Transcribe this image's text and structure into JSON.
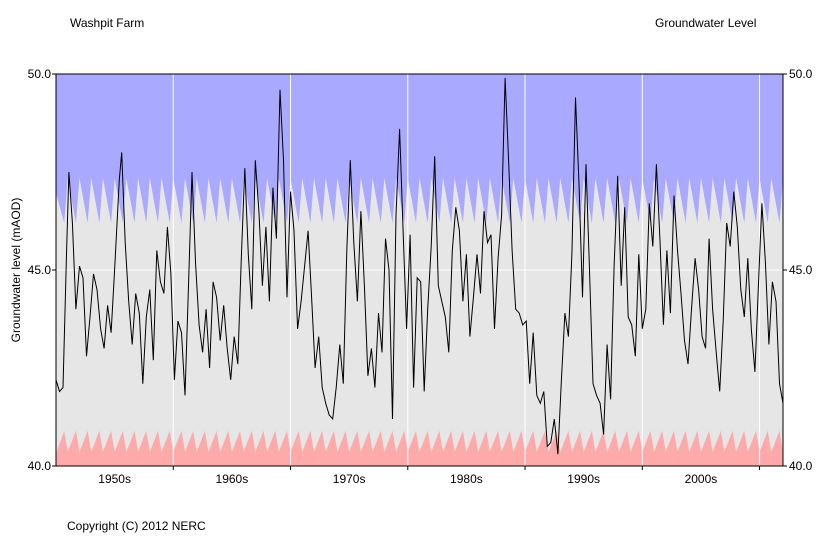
{
  "header": {
    "site": "Washpit Farm",
    "title": "Groundwater Level"
  },
  "footer": {
    "copyright": "Copyright (C) 2012 NERC"
  },
  "chart_data": {
    "type": "line",
    "title": "Groundwater Level",
    "subtitle": "Washpit Farm",
    "xlabel": "",
    "ylabel": "Groundwater level (mAOD)",
    "xlim": [
      1945.0,
      2007.0
    ],
    "ylim": [
      40.0,
      50.0
    ],
    "y_ticks": [
      "40.0",
      "45.0",
      "50.0"
    ],
    "x_tick_labels": [
      {
        "label": "1950s",
        "center": 1950.0
      },
      {
        "label": "1960s",
        "center": 1960.0
      },
      {
        "label": "1970s",
        "center": 1970.0
      },
      {
        "label": "1980s",
        "center": 1980.0
      },
      {
        "label": "1990s",
        "center": 1990.0
      },
      {
        "label": "2000s",
        "center": 2000.0
      }
    ],
    "gridlines_x": [
      1955,
      1965,
      1975,
      1985,
      1995,
      2005
    ],
    "gridlines_y": [
      45.0
    ],
    "grid": true,
    "colors": {
      "line": "#000000",
      "plot_background": "#e6e6e6",
      "high_band": "#a9a9ff",
      "low_band": "#ffaaaa",
      "grid": "#ffffff"
    },
    "bands": {
      "high_max_level": 50.0,
      "high_min_level": 46.2,
      "low_max_level": 40.9,
      "low_min_level": 40.0
    },
    "series": [
      {
        "values": [
          [
            1945.0,
            42.2
          ],
          [
            1945.3,
            41.9
          ],
          [
            1945.6,
            42.0
          ],
          [
            1945.9,
            45.5
          ],
          [
            1946.1,
            47.5
          ],
          [
            1946.4,
            46.2
          ],
          [
            1946.7,
            44.0
          ],
          [
            1947.0,
            45.1
          ],
          [
            1947.3,
            44.8
          ],
          [
            1947.6,
            42.8
          ],
          [
            1947.9,
            43.8
          ],
          [
            1948.2,
            44.9
          ],
          [
            1948.5,
            44.5
          ],
          [
            1948.8,
            43.5
          ],
          [
            1949.1,
            43.0
          ],
          [
            1949.4,
            44.1
          ],
          [
            1949.7,
            43.4
          ],
          [
            1950.0,
            45.0
          ],
          [
            1950.4,
            47.3
          ],
          [
            1950.6,
            48.0
          ],
          [
            1950.9,
            45.7
          ],
          [
            1951.2,
            44.2
          ],
          [
            1951.5,
            43.1
          ],
          [
            1951.8,
            44.4
          ],
          [
            1952.1,
            43.9
          ],
          [
            1952.4,
            42.1
          ],
          [
            1952.7,
            43.8
          ],
          [
            1953.0,
            44.5
          ],
          [
            1953.3,
            42.7
          ],
          [
            1953.6,
            45.5
          ],
          [
            1953.9,
            44.7
          ],
          [
            1954.2,
            44.4
          ],
          [
            1954.5,
            46.1
          ],
          [
            1954.8,
            44.9
          ],
          [
            1955.1,
            42.2
          ],
          [
            1955.4,
            43.7
          ],
          [
            1955.7,
            43.4
          ],
          [
            1956.0,
            41.8
          ],
          [
            1956.3,
            44.6
          ],
          [
            1956.6,
            47.5
          ],
          [
            1956.9,
            45.2
          ],
          [
            1957.2,
            43.6
          ],
          [
            1957.5,
            42.9
          ],
          [
            1957.8,
            44.0
          ],
          [
            1958.1,
            42.5
          ],
          [
            1958.4,
            44.7
          ],
          [
            1958.7,
            44.3
          ],
          [
            1959.0,
            43.2
          ],
          [
            1959.3,
            44.1
          ],
          [
            1959.6,
            43.0
          ],
          [
            1959.9,
            42.2
          ],
          [
            1960.2,
            43.3
          ],
          [
            1960.5,
            42.6
          ],
          [
            1960.8,
            45.3
          ],
          [
            1961.1,
            47.6
          ],
          [
            1961.4,
            45.4
          ],
          [
            1961.7,
            44.0
          ],
          [
            1962.0,
            47.8
          ],
          [
            1962.3,
            46.5
          ],
          [
            1962.6,
            44.6
          ],
          [
            1962.9,
            46.1
          ],
          [
            1963.2,
            44.2
          ],
          [
            1963.5,
            47.1
          ],
          [
            1963.8,
            45.8
          ],
          [
            1964.1,
            49.6
          ],
          [
            1964.4,
            47.8
          ],
          [
            1964.7,
            44.3
          ],
          [
            1965.0,
            47.0
          ],
          [
            1965.3,
            46.0
          ],
          [
            1965.6,
            43.5
          ],
          [
            1965.9,
            44.2
          ],
          [
            1966.2,
            45.1
          ],
          [
            1966.5,
            46.0
          ],
          [
            1966.8,
            44.3
          ],
          [
            1967.1,
            42.5
          ],
          [
            1967.4,
            43.3
          ],
          [
            1967.7,
            42.0
          ],
          [
            1968.0,
            41.6
          ],
          [
            1968.3,
            41.3
          ],
          [
            1968.6,
            41.2
          ],
          [
            1968.9,
            42.0
          ],
          [
            1969.2,
            43.1
          ],
          [
            1969.5,
            42.1
          ],
          [
            1969.8,
            45.5
          ],
          [
            1970.1,
            47.8
          ],
          [
            1970.4,
            45.7
          ],
          [
            1970.7,
            44.2
          ],
          [
            1971.0,
            46.5
          ],
          [
            1971.3,
            44.6
          ],
          [
            1971.6,
            42.3
          ],
          [
            1971.9,
            43.0
          ],
          [
            1972.2,
            42.0
          ],
          [
            1972.5,
            43.9
          ],
          [
            1972.8,
            42.9
          ],
          [
            1973.1,
            45.8
          ],
          [
            1973.4,
            45.0
          ],
          [
            1973.7,
            41.2
          ],
          [
            1974.0,
            46.4
          ],
          [
            1974.3,
            48.6
          ],
          [
            1974.6,
            46.0
          ],
          [
            1974.9,
            43.5
          ],
          [
            1975.2,
            45.9
          ],
          [
            1975.5,
            42.0
          ],
          [
            1975.8,
            44.8
          ],
          [
            1976.1,
            44.7
          ],
          [
            1976.4,
            41.9
          ],
          [
            1976.7,
            44.0
          ],
          [
            1977.0,
            45.6
          ],
          [
            1977.3,
            47.9
          ],
          [
            1977.6,
            44.6
          ],
          [
            1977.9,
            44.2
          ],
          [
            1978.2,
            43.8
          ],
          [
            1978.5,
            42.9
          ],
          [
            1978.8,
            45.5
          ],
          [
            1979.1,
            46.6
          ],
          [
            1979.4,
            46.0
          ],
          [
            1979.7,
            44.2
          ],
          [
            1980.0,
            45.4
          ],
          [
            1980.3,
            43.3
          ],
          [
            1980.6,
            44.3
          ],
          [
            1980.9,
            45.4
          ],
          [
            1981.2,
            44.4
          ],
          [
            1981.5,
            46.5
          ],
          [
            1981.8,
            45.7
          ],
          [
            1982.1,
            45.9
          ],
          [
            1982.4,
            43.5
          ],
          [
            1982.7,
            45.3
          ],
          [
            1983.0,
            46.4
          ],
          [
            1983.3,
            49.9
          ],
          [
            1983.6,
            47.8
          ],
          [
            1983.9,
            45.5
          ],
          [
            1984.2,
            44.0
          ],
          [
            1984.5,
            43.9
          ],
          [
            1984.8,
            43.6
          ],
          [
            1985.1,
            43.7
          ],
          [
            1985.4,
            42.1
          ],
          [
            1985.7,
            43.4
          ],
          [
            1986.0,
            41.8
          ],
          [
            1986.3,
            41.6
          ],
          [
            1986.6,
            41.9
          ],
          [
            1986.9,
            40.5
          ],
          [
            1987.2,
            40.6
          ],
          [
            1987.5,
            41.2
          ],
          [
            1987.8,
            40.3
          ],
          [
            1988.1,
            42.2
          ],
          [
            1988.4,
            43.9
          ],
          [
            1988.7,
            43.3
          ],
          [
            1989.0,
            45.4
          ],
          [
            1989.3,
            49.4
          ],
          [
            1989.6,
            47.2
          ],
          [
            1989.9,
            44.3
          ],
          [
            1990.2,
            47.7
          ],
          [
            1990.5,
            45.0
          ],
          [
            1990.8,
            42.1
          ],
          [
            1991.1,
            41.8
          ],
          [
            1991.4,
            41.6
          ],
          [
            1991.7,
            40.8
          ],
          [
            1992.0,
            43.1
          ],
          [
            1992.3,
            41.7
          ],
          [
            1992.6,
            45.1
          ],
          [
            1992.9,
            47.4
          ],
          [
            1993.2,
            44.6
          ],
          [
            1993.5,
            46.6
          ],
          [
            1993.8,
            43.8
          ],
          [
            1994.1,
            43.6
          ],
          [
            1994.4,
            42.8
          ],
          [
            1994.7,
            45.4
          ],
          [
            1995.0,
            43.5
          ],
          [
            1995.3,
            44.0
          ],
          [
            1995.6,
            46.7
          ],
          [
            1995.9,
            45.6
          ],
          [
            1996.2,
            47.7
          ],
          [
            1996.5,
            45.8
          ],
          [
            1996.8,
            43.6
          ],
          [
            1997.1,
            45.5
          ],
          [
            1997.4,
            43.9
          ],
          [
            1997.7,
            46.9
          ],
          [
            1998.0,
            45.5
          ],
          [
            1998.3,
            44.4
          ],
          [
            1998.6,
            43.2
          ],
          [
            1998.9,
            42.6
          ],
          [
            1999.2,
            44.0
          ],
          [
            1999.5,
            45.3
          ],
          [
            1999.8,
            44.5
          ],
          [
            2000.1,
            43.3
          ],
          [
            2000.4,
            43.0
          ],
          [
            2000.7,
            45.8
          ],
          [
            2001.0,
            44.0
          ],
          [
            2001.3,
            42.9
          ],
          [
            2001.6,
            41.9
          ],
          [
            2001.9,
            43.7
          ],
          [
            2002.2,
            46.2
          ],
          [
            2002.5,
            45.6
          ],
          [
            2002.8,
            47.0
          ],
          [
            2003.1,
            46.1
          ],
          [
            2003.4,
            44.5
          ],
          [
            2003.7,
            43.8
          ],
          [
            2004.0,
            45.3
          ],
          [
            2004.3,
            43.5
          ],
          [
            2004.6,
            42.4
          ],
          [
            2004.9,
            44.6
          ],
          [
            2005.2,
            46.7
          ],
          [
            2005.5,
            45.2
          ],
          [
            2005.8,
            43.1
          ],
          [
            2006.1,
            44.7
          ],
          [
            2006.4,
            44.2
          ],
          [
            2006.7,
            42.1
          ],
          [
            2007.0,
            41.6
          ]
        ]
      }
    ]
  }
}
